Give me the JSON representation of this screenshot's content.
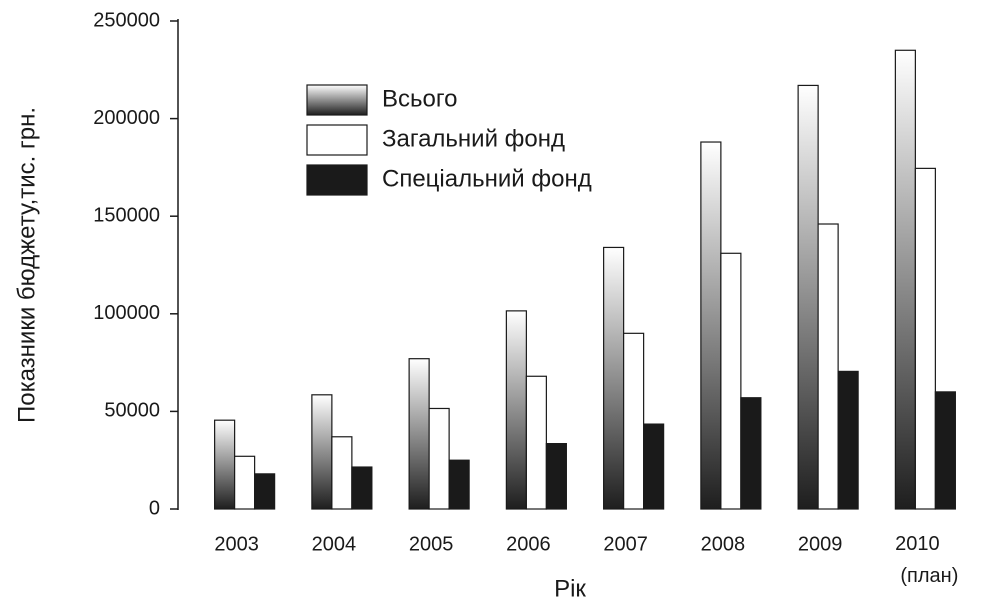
{
  "chart_data": {
    "type": "bar",
    "xlabel": "Рік",
    "ylabel": "Показники бюджету,тис. грн.",
    "categories": [
      "2003",
      "2004",
      "2005",
      "2006",
      "2007",
      "2008",
      "2009",
      "2010 (план)"
    ],
    "series": [
      {
        "name": "Всього",
        "color": [
          "#ffffff",
          "#1e1e1e"
        ],
        "values": [
          45500,
          58500,
          77000,
          101500,
          134000,
          188000,
          217000,
          235000
        ]
      },
      {
        "name": "Загальний фонд",
        "color": "#ffffff",
        "values": [
          27000,
          37000,
          51500,
          68000,
          90000,
          131000,
          146000,
          174500
        ]
      },
      {
        "name": "Спеціальний фонд",
        "color": "#1a1a1a",
        "values": [
          18000,
          21500,
          25000,
          33500,
          43500,
          57000,
          70500,
          60000
        ]
      }
    ],
    "ylim": [
      0,
      250000
    ],
    "yticks": [
      0,
      50000,
      100000,
      150000,
      200000,
      250000
    ],
    "grid": false,
    "legend": "upper left"
  }
}
